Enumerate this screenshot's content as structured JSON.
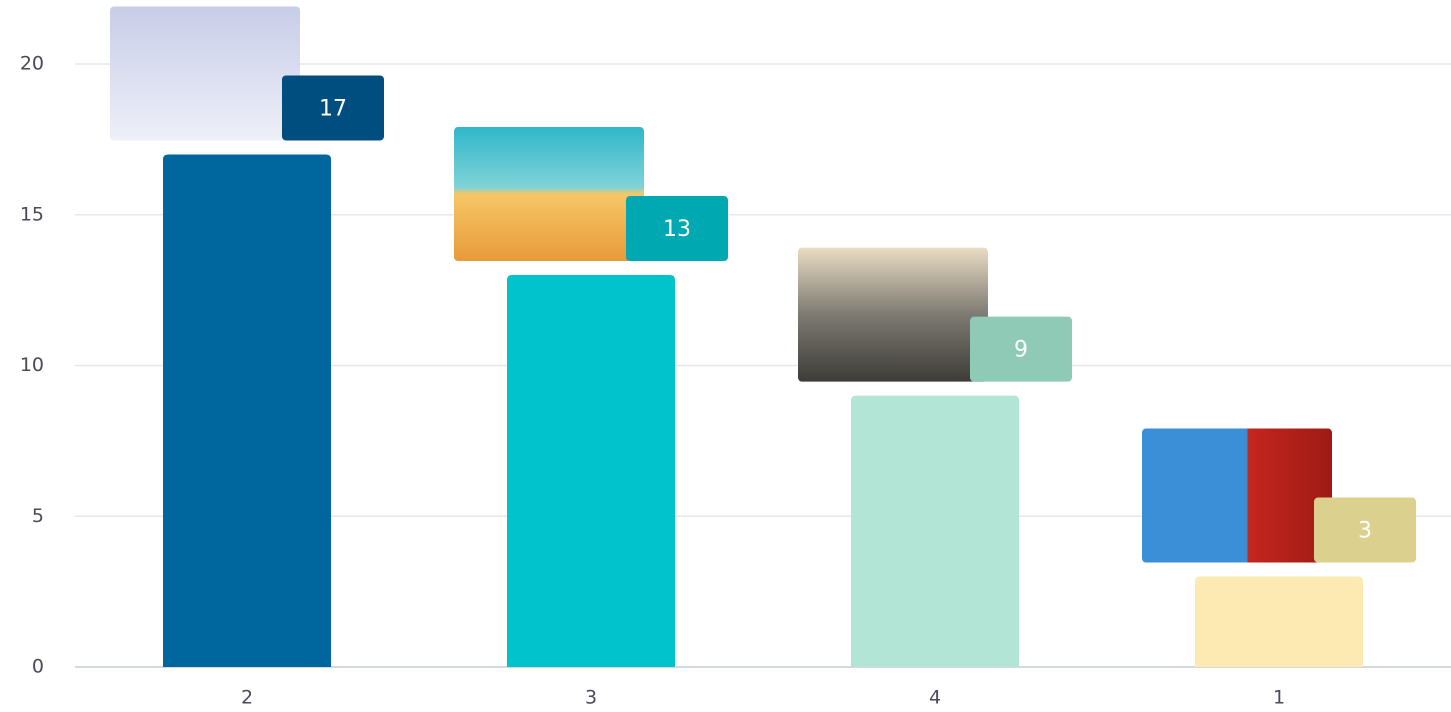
{
  "chart_data": {
    "type": "bar",
    "categories": [
      "2",
      "3",
      "4",
      "1"
    ],
    "values": [
      17,
      13,
      9,
      3
    ],
    "colors": [
      "#00679e",
      "#00c3cc",
      "#b3e5d7",
      "#fdeab3"
    ],
    "label_colors": [
      "#004d80",
      "#00a9b1",
      "#8fcab6",
      "#dcd08f"
    ],
    "ylim": [
      0,
      20
    ],
    "yticks": [
      0,
      5,
      10,
      15,
      20
    ],
    "grid": true
  }
}
